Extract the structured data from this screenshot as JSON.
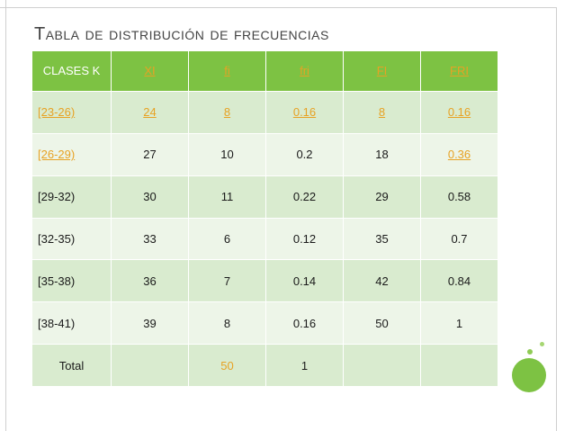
{
  "slide": {
    "title": "Tabla de distribución de frecuencias"
  },
  "table": {
    "headers": [
      "CLASES K",
      "XI",
      "fi",
      "fri",
      "FI",
      "FRI"
    ],
    "rows": [
      [
        "[23-26)",
        "24",
        "8",
        "0.16",
        "8",
        "0.16"
      ],
      [
        "[26-29)",
        "27",
        "10",
        "0.2",
        "18",
        "0.36"
      ],
      [
        "[29-32)",
        "30",
        "11",
        "0.22",
        "29",
        "0.58"
      ],
      [
        "[32-35)",
        "33",
        "6",
        "0.12",
        "35",
        "0.7"
      ],
      [
        "[35-38)",
        "36",
        "7",
        "0.14",
        "42",
        "0.84"
      ],
      [
        "[38-41)",
        "39",
        "8",
        "0.16",
        "50",
        "1"
      ],
      [
        "Total",
        "",
        "50",
        "1",
        "",
        ""
      ]
    ]
  },
  "colors": {
    "header_bg": "#7dc243",
    "row_dark": "#d9ebcf",
    "row_light": "#edf5e8",
    "link": "#e7a224",
    "title": "#444444"
  }
}
